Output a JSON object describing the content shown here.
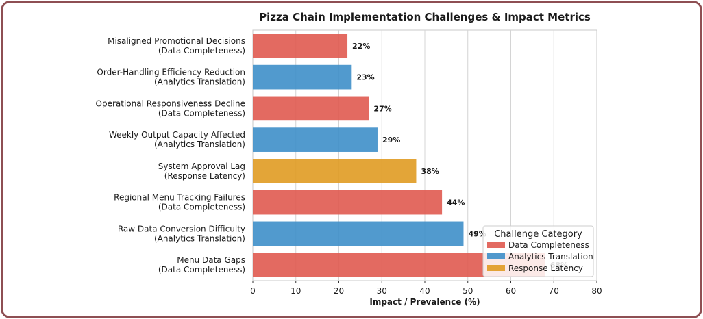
{
  "chart_data": {
    "type": "bar",
    "orientation": "horizontal",
    "title": "Pizza Chain Implementation Challenges & Impact Metrics",
    "xlabel": "Impact / Prevalence (%)",
    "ylabel": "",
    "xlim": [
      0,
      80
    ],
    "xticks": [
      0,
      10,
      20,
      30,
      40,
      50,
      60,
      70,
      80
    ],
    "grid": "vertical",
    "bars": [
      {
        "name": "Misaligned Promotional Decisions",
        "category": "(Data Completeness)",
        "value": 22,
        "label": "22%"
      },
      {
        "name": "Order-Handling Efficiency Reduction",
        "category": "(Analytics Translation)",
        "value": 23,
        "label": "23%"
      },
      {
        "name": "Operational Responsiveness Decline",
        "category": "(Data Completeness)",
        "value": 27,
        "label": "27%"
      },
      {
        "name": "Weekly Output Capacity Affected",
        "category": "(Analytics Translation)",
        "value": 29,
        "label": "29%"
      },
      {
        "name": "System Approval Lag",
        "category": "(Response Latency)",
        "value": 38,
        "label": "38%"
      },
      {
        "name": "Regional Menu Tracking Failures",
        "category": "(Data Completeness)",
        "value": 44,
        "label": "44%"
      },
      {
        "name": "Raw Data Conversion Difficulty",
        "category": "(Analytics Translation)",
        "value": 49,
        "label": "49%"
      },
      {
        "name": "Menu Data Gaps",
        "category": "(Data Completeness)",
        "value": 68,
        "label": "68%"
      }
    ],
    "legend": {
      "title": "Challenge Category",
      "placement": "lower-right",
      "entries": [
        {
          "label": "Data Completeness",
          "color": "#e05a50"
        },
        {
          "label": "Analytics Translation",
          "color": "#3e8fc9"
        },
        {
          "label": "Response Latency",
          "color": "#e09b22"
        }
      ]
    }
  }
}
